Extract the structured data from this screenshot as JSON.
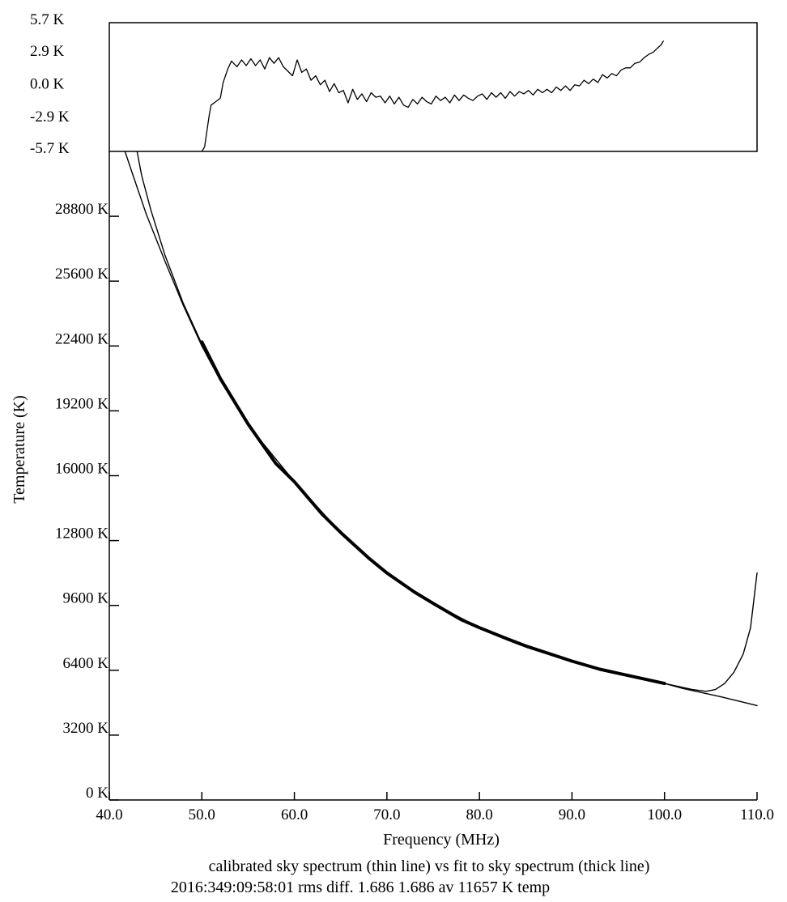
{
  "chart_data": [
    {
      "panel": "residual",
      "type": "line",
      "ylim": [
        -5.7,
        5.7
      ],
      "xlim": [
        40,
        110
      ],
      "y_ticks": [
        "5.7 K",
        "2.9 K",
        "0.0 K",
        "-2.9 K",
        "-5.7 K"
      ],
      "y_tick_values": [
        5.7,
        2.9,
        0.0,
        -2.9,
        -5.7
      ],
      "series": [
        {
          "x": [
            50.0,
            50.3,
            50.8,
            51.0,
            51.5,
            52.0,
            52.3,
            52.8,
            53.2,
            53.8,
            54.3,
            54.8,
            55.3,
            55.8,
            56.3,
            56.8,
            57.3,
            57.8,
            58.3,
            58.8,
            59.3,
            59.8,
            60.3,
            60.8,
            61.3,
            61.8,
            62.3,
            62.8,
            63.3,
            63.8,
            64.3,
            64.8,
            65.3,
            65.8,
            66.3,
            66.8,
            67.3,
            67.8,
            68.3,
            68.8,
            69.3,
            69.8,
            70.3,
            70.8,
            71.3,
            71.8,
            72.3,
            72.8,
            73.3,
            73.8,
            74.3,
            74.8,
            75.3,
            75.8,
            76.3,
            76.8,
            77.3,
            77.8,
            78.3,
            78.8,
            79.3,
            79.8,
            80.3,
            80.8,
            81.3,
            81.8,
            82.3,
            82.8,
            83.3,
            83.8,
            84.3,
            84.8,
            85.3,
            85.8,
            86.3,
            86.8,
            87.3,
            87.8,
            88.3,
            88.8,
            89.3,
            89.8,
            90.3,
            90.8,
            91.3,
            91.8,
            92.3,
            92.8,
            93.3,
            93.8,
            94.3,
            94.8,
            95.3,
            95.8,
            96.3,
            96.8,
            97.3,
            97.8,
            98.3,
            98.8,
            99.3,
            99.6,
            99.9
          ],
          "y": [
            -5.7,
            -5.3,
            -2.5,
            -1.6,
            -1.3,
            -1.0,
            0.4,
            1.6,
            2.3,
            1.8,
            2.4,
            1.9,
            2.5,
            1.9,
            2.4,
            1.6,
            2.6,
            2.1,
            2.6,
            1.8,
            1.4,
            1.0,
            2.4,
            1.3,
            1.6,
            0.6,
            1.0,
            0.2,
            0.6,
            -0.4,
            0.3,
            -0.5,
            -0.3,
            -1.4,
            -0.2,
            -1.1,
            -0.6,
            -1.3,
            -0.5,
            -0.9,
            -0.8,
            -1.4,
            -0.8,
            -1.5,
            -0.9,
            -1.6,
            -1.8,
            -1.1,
            -1.5,
            -0.9,
            -1.3,
            -1.5,
            -0.8,
            -1.2,
            -0.9,
            -1.4,
            -0.7,
            -1.2,
            -0.7,
            -1.0,
            -1.2,
            -0.8,
            -0.6,
            -1.1,
            -0.5,
            -0.9,
            -0.5,
            -1.0,
            -0.4,
            -0.8,
            -0.4,
            -0.6,
            -0.3,
            -0.7,
            -0.2,
            -0.5,
            -0.2,
            -0.5,
            0.0,
            -0.3,
            0.1,
            -0.3,
            0.2,
            0.1,
            0.6,
            0.3,
            0.7,
            0.4,
            1.1,
            0.8,
            1.2,
            1.0,
            1.5,
            1.7,
            1.7,
            2.1,
            2.2,
            2.6,
            2.9,
            3.1,
            3.5,
            3.7,
            4.1
          ]
        }
      ]
    },
    {
      "panel": "main",
      "type": "line",
      "xlim": [
        40,
        110
      ],
      "ylim": [
        0,
        32000
      ],
      "x_ticks": [
        "40.0",
        "50.0",
        "60.0",
        "70.0",
        "80.0",
        "90.0",
        "100.0",
        "110.0"
      ],
      "x_tick_values": [
        40,
        50,
        60,
        70,
        80,
        90,
        100,
        110
      ],
      "y_ticks": [
        "28800 K",
        "25600 K",
        "22400 K",
        "19200 K",
        "16000 K",
        "12800 K",
        "9600 K",
        "6400 K",
        "3200 K",
        "0 K"
      ],
      "y_tick_values": [
        28800,
        25600,
        22400,
        19200,
        16000,
        12800,
        9600,
        6400,
        3200,
        0
      ],
      "xlabel": "Frequency (MHz)",
      "ylabel": "Temperature (K)",
      "series": [
        {
          "style": "thin",
          "x": [
            41.7,
            42.5,
            44.0,
            46.0,
            48.0,
            50.0,
            52.0,
            55.0,
            60.0,
            65.0,
            70.0,
            75.0,
            80.0,
            85.0,
            90.0,
            95.0,
            100.0,
            103.0,
            104.5,
            105.5,
            106.5,
            107.5,
            108.5,
            109.3,
            110.0
          ],
          "y": [
            32000,
            30900,
            28900,
            26600,
            24400,
            22400,
            20700,
            18500,
            15700,
            13200,
            11200,
            9700,
            8500,
            7600,
            6850,
            6250,
            5750,
            5450,
            5360,
            5450,
            5750,
            6300,
            7200,
            8500,
            11200
          ]
        },
        {
          "style": "thin",
          "x": [
            43.0,
            43.5,
            44.5,
            46.0,
            48.0,
            50.0
          ],
          "y": [
            32000,
            30800,
            29100,
            26900,
            24500,
            22500
          ]
        },
        {
          "style": "thick",
          "x": [
            50.0,
            52.0,
            55.0,
            58.0,
            60.0,
            63.0,
            65.0,
            68.0,
            70.0,
            73.0,
            75.0,
            78.0,
            80.0,
            83.0,
            85.0,
            88.0,
            90.0,
            93.0,
            95.0,
            98.0,
            100.0
          ],
          "y": [
            22600,
            20800,
            18550,
            16600,
            15700,
            14100,
            13200,
            11950,
            11200,
            10250,
            9700,
            8900,
            8500,
            7950,
            7600,
            7150,
            6850,
            6450,
            6250,
            5950,
            5750
          ]
        },
        {
          "style": "thin",
          "x": [
            100.0,
            102.0,
            104.0,
            106.0,
            108.0,
            110.0
          ],
          "y": [
            5750,
            5500,
            5300,
            5100,
            4880,
            4660
          ]
        }
      ]
    }
  ],
  "caption": {
    "line1": "calibrated sky spectrum (thin line) vs fit to sky spectrum (thick line)",
    "line2": "2016:349:09:58:01 rms diff. 1.686 1.686 av 11657 K temp"
  }
}
